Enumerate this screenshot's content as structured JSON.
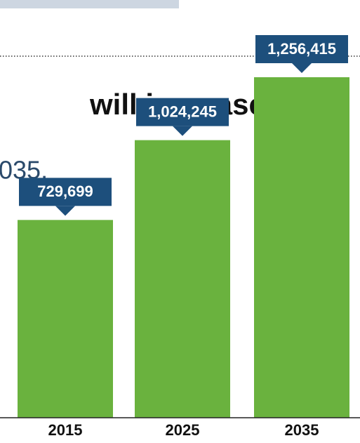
{
  "chart_data": {
    "type": "bar",
    "title": "will increase",
    "subtitle": "035.",
    "categories": [
      "2015",
      "2025",
      "2035"
    ],
    "values": [
      729699,
      1024245,
      1256415
    ],
    "value_labels": [
      "729,699",
      "1,024,245",
      "1,256,415"
    ],
    "color": "#6ab23e",
    "label_color": "#1d4f7c"
  }
}
